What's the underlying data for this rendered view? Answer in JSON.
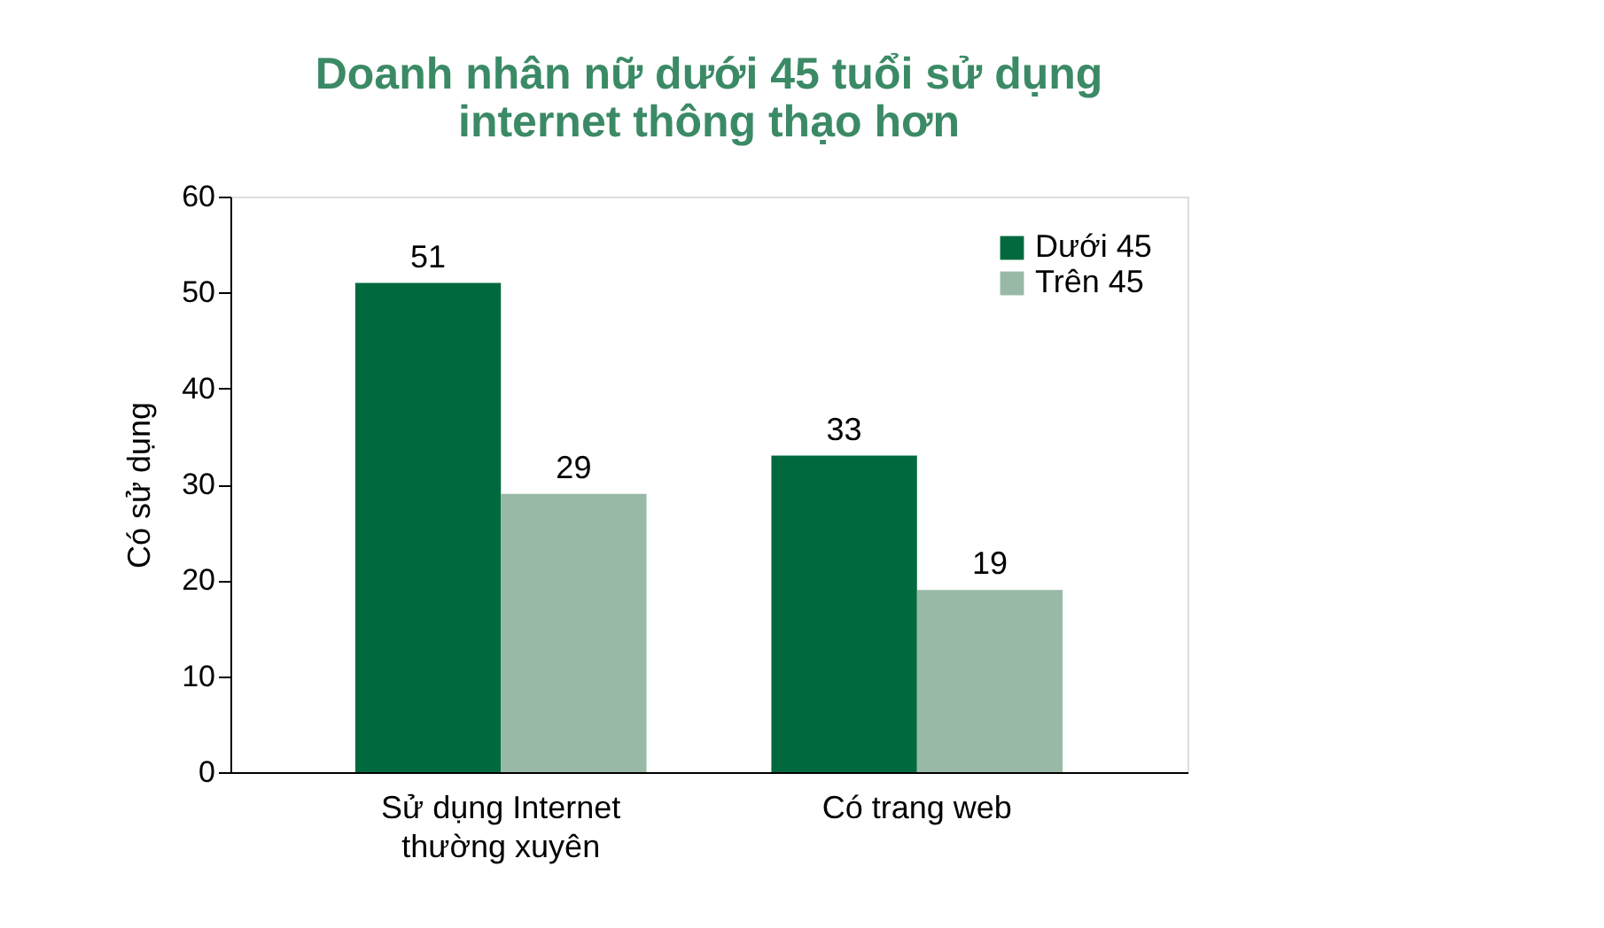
{
  "chart_data": {
    "type": "bar",
    "title": "Doanh nhân nữ dưới 45 tuổi sử dụng internet thông thạo hơn",
    "ylabel": "Có sử dụng",
    "categories": [
      "Sử dụng Internet thường xuyên",
      "Có trang web"
    ],
    "series": [
      {
        "name": "Dưới 45",
        "color": "#006a3e",
        "values": [
          51,
          33
        ]
      },
      {
        "name": "Trên 45",
        "color": "#98b9a5",
        "values": [
          29,
          19
        ]
      }
    ],
    "ylim": [
      0,
      60
    ],
    "yticks": [
      0,
      10,
      20,
      30,
      40,
      50,
      60
    ],
    "grid": false,
    "legend": "top right",
    "data_labels": true
  }
}
